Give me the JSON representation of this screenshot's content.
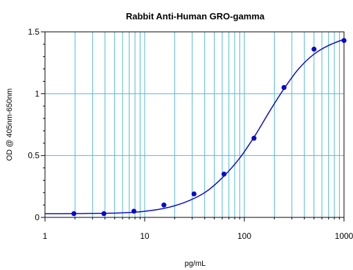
{
  "chart_data": {
    "type": "scatter",
    "title": "Rabbit Anti-Human GRO-gamma",
    "xlabel": "pg/mL",
    "ylabel": "OD @ 405nm-650nm",
    "x_scale": "log",
    "xlim": [
      1,
      1000
    ],
    "ylim": [
      0,
      1.5
    ],
    "x_ticks": [
      1,
      10,
      100,
      1000
    ],
    "x_tick_labels": [
      "1",
      "10",
      "100",
      "1000"
    ],
    "y_ticks": [
      0,
      0.5,
      1,
      1.5
    ],
    "y_tick_labels": [
      "0",
      "0.5",
      "1",
      "1.5"
    ],
    "grid": true,
    "colors": {
      "grid": "#4fb8d8",
      "series": "#0a0ac8",
      "axis": "#000000"
    },
    "series": [
      {
        "points": [
          {
            "x": 1.95,
            "y": 0.03
          },
          {
            "x": 3.9,
            "y": 0.03
          },
          {
            "x": 7.8,
            "y": 0.05
          },
          {
            "x": 15.6,
            "y": 0.1
          },
          {
            "x": 31.25,
            "y": 0.19
          },
          {
            "x": 62.5,
            "y": 0.35
          },
          {
            "x": 125,
            "y": 0.64
          },
          {
            "x": 250,
            "y": 1.05
          },
          {
            "x": 500,
            "y": 1.36
          },
          {
            "x": 1000,
            "y": 1.43
          }
        ],
        "fit_curve": [
          {
            "x": 1,
            "y": 0.03
          },
          {
            "x": 2,
            "y": 0.031
          },
          {
            "x": 4,
            "y": 0.033
          },
          {
            "x": 8,
            "y": 0.042
          },
          {
            "x": 15,
            "y": 0.07
          },
          {
            "x": 25,
            "y": 0.12
          },
          {
            "x": 40,
            "y": 0.2
          },
          {
            "x": 60,
            "y": 0.32
          },
          {
            "x": 90,
            "y": 0.48
          },
          {
            "x": 130,
            "y": 0.67
          },
          {
            "x": 180,
            "y": 0.86
          },
          {
            "x": 250,
            "y": 1.04
          },
          {
            "x": 350,
            "y": 1.2
          },
          {
            "x": 500,
            "y": 1.32
          },
          {
            "x": 700,
            "y": 1.39
          },
          {
            "x": 1000,
            "y": 1.44
          }
        ]
      }
    ]
  }
}
